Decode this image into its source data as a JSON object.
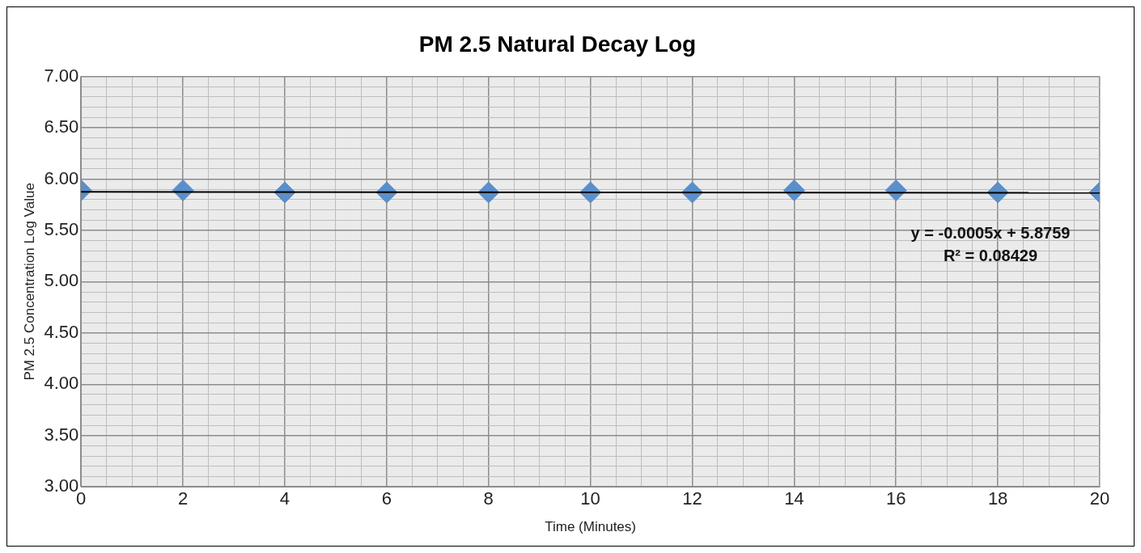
{
  "chart_data": {
    "type": "scatter",
    "title": "PM 2.5 Natural Decay Log",
    "xlabel": "Time (Minutes)",
    "ylabel": "PM 2.5 Concentration Log Value",
    "x": [
      0,
      2,
      4,
      6,
      8,
      10,
      12,
      14,
      16,
      18,
      20
    ],
    "series": [
      {
        "color": "#5b8fc9",
        "marker": "diamond",
        "values": [
          5.89,
          5.89,
          5.87,
          5.87,
          5.87,
          5.87,
          5.87,
          5.89,
          5.89,
          5.87,
          5.87
        ]
      },
      {
        "type": "line",
        "color": "#000000",
        "marker": "none",
        "x": [
          0,
          20
        ],
        "values": [
          5.876,
          5.866
        ]
      }
    ],
    "xlim": [
      0,
      20
    ],
    "xticks": [
      0,
      {
        "value": 0.5,
        "label": null
      },
      {
        "value": 1,
        "label": null
      },
      {
        "value": 1.5,
        "label": null
      },
      2,
      {
        "value": 2.5,
        "label": null
      },
      {
        "value": 3,
        "label": null
      },
      {
        "value": 3.5,
        "label": null
      },
      4,
      {
        "value": 4.5,
        "label": null
      },
      {
        "value": 5,
        "label": null
      },
      {
        "value": 5.5,
        "label": null
      },
      6,
      {
        "value": 6.5,
        "label": null
      },
      {
        "value": 7,
        "label": null
      },
      {
        "value": 7.5,
        "label": null
      },
      8,
      {
        "value": 8.5,
        "label": null
      },
      {
        "value": 9,
        "label": null
      },
      {
        "value": 9.5,
        "label": null
      },
      10,
      {
        "value": 10.5,
        "label": null
      },
      {
        "value": 11,
        "label": null
      },
      {
        "value": 11.5,
        "label": null
      },
      12,
      {
        "value": 12.5,
        "label": null
      },
      {
        "value": 13,
        "label": null
      },
      {
        "value": 13.5,
        "label": null
      },
      14,
      {
        "value": 14.5,
        "label": null
      },
      {
        "value": 15,
        "label": null
      },
      {
        "value": 15.5,
        "label": null
      },
      16,
      {
        "value": 16.5,
        "label": null
      },
      {
        "value": 17,
        "label": null
      },
      {
        "value": 17.5,
        "label": null
      },
      18,
      {
        "value": 18.5,
        "label": null
      },
      {
        "value": 19,
        "label": null
      },
      {
        "value": 19.5,
        "label": null
      },
      20
    ],
    "ylim": [
      3,
      7
    ],
    "yticks": [
      {
        "value": 3,
        "label": "3.00"
      },
      {
        "value": 3.1,
        "label": null
      },
      {
        "value": 3.2,
        "label": null
      },
      {
        "value": 3.3,
        "label": null
      },
      {
        "value": 3.4,
        "label": null
      },
      {
        "value": 3.5,
        "label": "3.50"
      },
      {
        "value": 3.6,
        "label": null
      },
      {
        "value": 3.7,
        "label": null
      },
      {
        "value": 3.8,
        "label": null
      },
      {
        "value": 3.9,
        "label": null
      },
      {
        "value": 4,
        "label": "4.00"
      },
      {
        "value": 4.1,
        "label": null
      },
      {
        "value": 4.2,
        "label": null
      },
      {
        "value": 4.3,
        "label": null
      },
      {
        "value": 4.4,
        "label": null
      },
      {
        "value": 4.5,
        "label": "4.50"
      },
      {
        "value": 4.6,
        "label": null
      },
      {
        "value": 4.7,
        "label": null
      },
      {
        "value": 4.8,
        "label": null
      },
      {
        "value": 4.9,
        "label": null
      },
      {
        "value": 5,
        "label": "5.00"
      },
      {
        "value": 5.1,
        "label": null
      },
      {
        "value": 5.2,
        "label": null
      },
      {
        "value": 5.3,
        "label": null
      },
      {
        "value": 5.4,
        "label": null
      },
      {
        "value": 5.5,
        "label": "5.50"
      },
      {
        "value": 5.6,
        "label": null
      },
      {
        "value": 5.7,
        "label": null
      },
      {
        "value": 5.8,
        "label": null
      },
      {
        "value": 5.9,
        "label": null
      },
      {
        "value": 6,
        "label": "6.00"
      },
      {
        "value": 6.1,
        "label": null
      },
      {
        "value": 6.2,
        "label": null
      },
      {
        "value": 6.3,
        "label": null
      },
      {
        "value": 6.4,
        "label": null
      },
      {
        "value": 6.5,
        "label": "6.50"
      },
      {
        "value": 6.6,
        "label": null
      },
      {
        "value": 6.7,
        "label": null
      },
      {
        "value": 6.8,
        "label": null
      },
      {
        "value": 6.9,
        "label": null
      },
      {
        "value": 7,
        "label": "7.00"
      }
    ],
    "grid": true,
    "legend": false,
    "annotations": [
      "y = -0.0005x + 5.8759",
      "R² = 0.08429"
    ]
  }
}
